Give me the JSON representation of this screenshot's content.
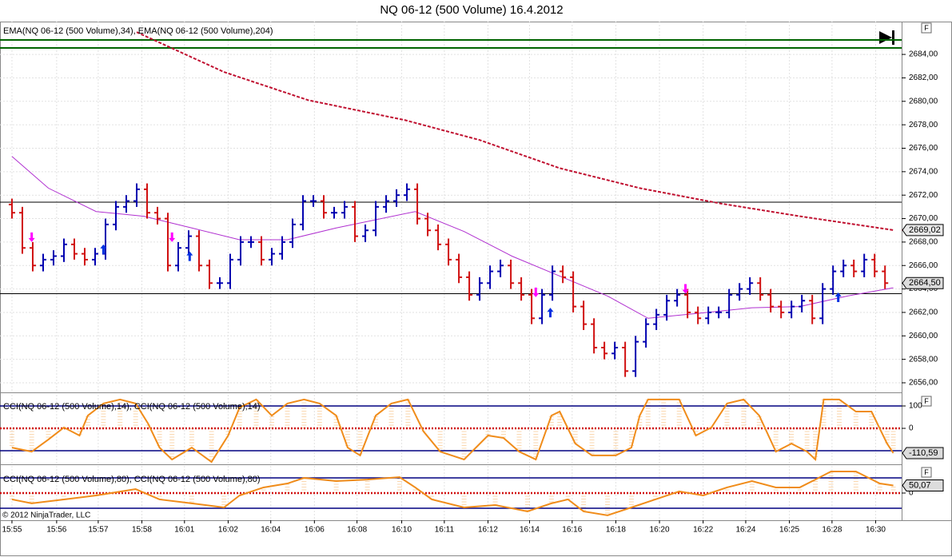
{
  "chart_data": [
    {
      "type": "ohlc",
      "title": "NQ 06-12 (500 Volume)  16.4.2012",
      "legend_text": "EMA(NQ 06-12 (500 Volume),34), EMA(NQ 06-12 (500 Volume),204)",
      "copyright": "© 2012 NinjaTrader, LLC",
      "axis_button": "F",
      "up_color": "#0000b0",
      "down_color": "#d01010",
      "grid": true,
      "xlim": [
        -1.15,
        85.6
      ],
      "xticks": [
        {
          "value": 0,
          "label": "15:55"
        },
        {
          "value": 4.3,
          "label": "15:56"
        },
        {
          "value": 8.3,
          "label": "15:57"
        },
        {
          "value": 12.5,
          "label": "15:58"
        },
        {
          "value": 16.6,
          "label": "16:01"
        },
        {
          "value": 20.8,
          "label": "16:02"
        },
        {
          "value": 24.9,
          "label": "16:04"
        },
        {
          "value": 29.1,
          "label": "16:06"
        },
        {
          "value": 33.2,
          "label": "16:08"
        },
        {
          "value": 37.5,
          "label": "16:10"
        },
        {
          "value": 41.6,
          "label": "16:11"
        },
        {
          "value": 45.8,
          "label": "16:12"
        },
        {
          "value": 49.8,
          "label": "16:14"
        },
        {
          "value": 53.9,
          "label": "16:16"
        },
        {
          "value": 58.1,
          "label": "16:18"
        },
        {
          "value": 62.3,
          "label": "16:20"
        },
        {
          "value": 66.5,
          "label": "16:22"
        },
        {
          "value": 70.6,
          "label": "16:24"
        },
        {
          "value": 74.8,
          "label": "16:25"
        },
        {
          "value": 78.9,
          "label": "16:28"
        },
        {
          "value": 83.1,
          "label": "16:30"
        }
      ],
      "ylim": [
        2655.25,
        2686.8
      ],
      "yticks": [
        {
          "value": 2656,
          "label": "2656,00"
        },
        {
          "value": 2658,
          "label": "2658,00"
        },
        {
          "value": 2660,
          "label": "2660,00"
        },
        {
          "value": 2662,
          "label": "2662,00"
        },
        {
          "value": 2664,
          "label": "2664,00"
        },
        {
          "value": 2666,
          "label": "2666,00"
        },
        {
          "value": 2668,
          "label": "2668,00"
        },
        {
          "value": 2670,
          "label": "2670,00"
        },
        {
          "value": 2672,
          "label": "2672,00"
        },
        {
          "value": 2674,
          "label": "2674,00"
        },
        {
          "value": 2676,
          "label": "2676,00"
        },
        {
          "value": 2678,
          "label": "2678,00"
        },
        {
          "value": 2680,
          "label": "2680,00"
        },
        {
          "value": 2682,
          "label": "2682,00"
        },
        {
          "value": 2684,
          "label": "2684,00"
        }
      ],
      "open": [
        2671.2,
        2670.5,
        2667.5,
        2666,
        2666.5,
        2666.8,
        2667.8,
        2667,
        2666.5,
        2667,
        2669.5,
        2671,
        2671.5,
        2672.5,
        2670.5,
        2670,
        2666,
        2667.5,
        2668.5,
        2666,
        2664.5,
        2664.5,
        2666.5,
        2668,
        2668,
        2666.5,
        2667,
        2668,
        2669.5,
        2671.5,
        2671.5,
        2670.5,
        2670.5,
        2671,
        2668.5,
        2669,
        2671,
        2671.5,
        2672,
        2672.5,
        2670,
        2669,
        2667.8,
        2666.5,
        2665,
        2663.5,
        2664.5,
        2665.5,
        2666,
        2664.5,
        2663.5,
        2661.5,
        2663.5,
        2665.5,
        2665,
        2662.5,
        2661,
        2659,
        2658.5,
        2659,
        2657,
        2659.5,
        2661,
        2661.8,
        2663,
        2663.5,
        2662,
        2661.5,
        2662,
        2662,
        2663.5,
        2664,
        2664.5,
        2663.5,
        2662.5,
        2662,
        2662.5,
        2663,
        2661.5,
        2664,
        2665.5,
        2666,
        2665.5,
        2666.5,
        2665.5
      ],
      "high": [
        2671.7,
        2671,
        2668,
        2667,
        2667.3,
        2668.3,
        2668.3,
        2667.5,
        2667.5,
        2670,
        2671.5,
        2672,
        2673,
        2673,
        2671,
        2670.5,
        2668,
        2669,
        2669,
        2666.5,
        2665,
        2667,
        2668.5,
        2668.5,
        2668.5,
        2667.5,
        2668.5,
        2670,
        2672,
        2672,
        2672,
        2671,
        2671.5,
        2671.5,
        2669.5,
        2671.5,
        2672,
        2672.5,
        2673,
        2673,
        2670.5,
        2669.5,
        2668.3,
        2667,
        2665.5,
        2665,
        2666,
        2666.5,
        2666.5,
        2665,
        2664,
        2664,
        2666,
        2666,
        2665.5,
        2663,
        2661.5,
        2659.5,
        2659.5,
        2659.5,
        2660,
        2661.5,
        2662.3,
        2663.5,
        2664,
        2664,
        2662.5,
        2662.5,
        2662.5,
        2664,
        2664.5,
        2665,
        2665,
        2664,
        2663,
        2663,
        2663.5,
        2663.5,
        2664.5,
        2666,
        2666.5,
        2666.5,
        2667,
        2667,
        2666
      ],
      "low": [
        2670,
        2667,
        2665.5,
        2665.5,
        2666,
        2666.3,
        2666.5,
        2666,
        2666,
        2666.5,
        2669,
        2670.5,
        2671,
        2670,
        2669.5,
        2665.5,
        2665.5,
        2667,
        2665.5,
        2664,
        2664,
        2664,
        2666,
        2667.5,
        2666,
        2666,
        2666.5,
        2667.5,
        2669,
        2671,
        2670,
        2670,
        2670,
        2668,
        2668,
        2668.5,
        2670.5,
        2671,
        2671.5,
        2669.5,
        2668.5,
        2667.3,
        2666,
        2664.5,
        2663,
        2663,
        2664,
        2665,
        2664,
        2663,
        2661,
        2661,
        2663,
        2664.5,
        2662,
        2660.5,
        2658.5,
        2658,
        2658,
        2656.5,
        2656.5,
        2659,
        2660.5,
        2661.3,
        2662.5,
        2661.5,
        2661,
        2661,
        2661.5,
        2661.5,
        2663,
        2663.5,
        2663,
        2662,
        2661.5,
        2661.5,
        2662,
        2661,
        2661,
        2663.5,
        2665,
        2665,
        2665,
        2665,
        2664
      ],
      "close": [
        2670.5,
        2667.5,
        2666,
        2666.5,
        2666.8,
        2667.8,
        2667,
        2666.5,
        2667,
        2669.5,
        2671,
        2671.5,
        2672.5,
        2670.5,
        2670,
        2666,
        2667.5,
        2668.5,
        2666,
        2664.5,
        2664.5,
        2666.5,
        2668,
        2668,
        2666.5,
        2667,
        2668,
        2669.5,
        2671.5,
        2671.5,
        2670.5,
        2670.5,
        2671,
        2668.5,
        2669,
        2671,
        2671.5,
        2672,
        2672.5,
        2670,
        2669,
        2667.8,
        2666.5,
        2665,
        2663.5,
        2664.5,
        2665.5,
        2666,
        2664.5,
        2663.5,
        2661.5,
        2663.5,
        2665.5,
        2665,
        2662.5,
        2661,
        2659,
        2658.5,
        2659,
        2657,
        2659.5,
        2661,
        2661.8,
        2663,
        2663.5,
        2662,
        2661.5,
        2662,
        2662,
        2663.5,
        2664,
        2664.5,
        2663.5,
        2662.5,
        2662,
        2662.5,
        2663,
        2661.5,
        2664,
        2665.5,
        2666,
        2665.5,
        2666.5,
        2665.5,
        2664.5
      ],
      "series": [
        {
          "color": "#b030d0",
          "dash": false,
          "x": [
            0,
            3.5,
            8.1,
            12.7,
            17.3,
            21.9,
            26.5,
            31.2,
            38.8,
            43.5,
            48.1,
            52.7,
            57.3,
            61.2,
            65.8,
            71.2,
            75.8,
            80.4,
            84.8
          ],
          "values": [
            2675.3,
            2672.6,
            2670.6,
            2670.2,
            2669.2,
            2668.2,
            2668.2,
            2669.2,
            2670.6,
            2668.9,
            2666.8,
            2665.1,
            2663.4,
            2661.5,
            2661.9,
            2662.4,
            2662.5,
            2663.4,
            2664.1
          ]
        },
        {
          "color": "#c01030",
          "dash": true,
          "x": [
            12.0,
            20.4,
            28.5,
            37.8,
            45.0,
            52.7,
            60.4,
            68.1,
            75.8,
            84.8
          ],
          "values": [
            2685.9,
            2682.5,
            2680.1,
            2678.4,
            2676.7,
            2674.3,
            2672.6,
            2671.3,
            2670.2,
            2669.02
          ]
        }
      ],
      "hlines": [
        {
          "color": "#006400",
          "values": [
            2685.23,
            2684.55
          ]
        },
        {
          "color": "#000000",
          "values": [
            2671.4,
            2663.6
          ]
        }
      ],
      "arrows": [
        {
          "color": "#ff00ff",
          "direction": "down",
          "x": [
            1.9,
            15.4,
            50.4,
            64.8
          ],
          "values": [
            2668.0,
            2668.0,
            2663.3,
            2663.6
          ]
        },
        {
          "color": "#0030e0",
          "direction": "up",
          "x": [
            8.8,
            17.1,
            51.8,
            79.5
          ],
          "values": [
            2667.8,
            2667.2,
            2662.4,
            2663.7
          ]
        }
      ],
      "price_labels": [
        {
          "value": 2669.02,
          "label": "2669,02",
          "color": "#c01030"
        },
        {
          "value": 2664.5,
          "label": "2664,50",
          "color": "#000000"
        }
      ]
    },
    {
      "type": "cci",
      "legend_text": "CCI(NQ 06-12 (500 Volume),14), CCI(NQ 06-12 (500 Volume),14)",
      "axis_button": "F",
      "ylim": [
        -157,
        150
      ],
      "yticks": [
        100,
        0
      ],
      "bands": [
        100,
        -100
      ],
      "zero": 0,
      "series": [
        {
          "color": "#f08c1a",
          "x": [
            0,
            1.9,
            3.5,
            5,
            6.5,
            7.3,
            8.8,
            10.4,
            11.9,
            13.1,
            14.2,
            15.4,
            17.3,
            19.2,
            20.8,
            21.9,
            23.5,
            25,
            26.5,
            28.1,
            29.6,
            31.2,
            32.3,
            33.5,
            35,
            36.5,
            38.1,
            39.6,
            41.2,
            43.5,
            45.8,
            47.3,
            48.8,
            50.4,
            51.9,
            52.7,
            54.2,
            55.8,
            58.1,
            59.6,
            60.4,
            61.2,
            62.7,
            64.2,
            65.8,
            67.3,
            68.8,
            70.4,
            71.9,
            73.5,
            75,
            76.5,
            77.3,
            78.1,
            79.6,
            81.2,
            82.7,
            84.2,
            84.8
          ],
          "values": [
            -86,
            -104,
            -50,
            4,
            -32,
            57,
            111,
            129,
            111,
            21,
            -86,
            -139,
            -86,
            -150,
            -32,
            93,
            129,
            57,
            111,
            129,
            111,
            57,
            -86,
            -121,
            57,
            111,
            129,
            -14,
            -104,
            -139,
            -32,
            -43,
            -104,
            -139,
            57,
            75,
            -68,
            -121,
            -121,
            -86,
            57,
            129,
            129,
            129,
            -32,
            4,
            111,
            129,
            57,
            -104,
            -68,
            -104,
            -139,
            129,
            129,
            75,
            75,
            -68,
            -110.59
          ],
          "last_label": "-110,59"
        }
      ]
    },
    {
      "type": "cci",
      "legend_text": "CCI(NQ 06-12 (500 Volume),80), CCI(NQ 06-12 (500 Volume),80)",
      "axis_button": "F",
      "ylim": [
        -174,
        179
      ],
      "yticks": [
        0
      ],
      "bands": [
        100,
        -100
      ],
      "zero": 0,
      "series": [
        {
          "color": "#f08c1a",
          "x": [
            0,
            1.9,
            5,
            8.1,
            11.9,
            14.2,
            17.3,
            20.4,
            21.9,
            24.2,
            26.5,
            28.1,
            31.2,
            34.2,
            37.3,
            38.8,
            40.4,
            43.5,
            46.5,
            49.6,
            51.9,
            53.5,
            55,
            57.3,
            59.6,
            61.9,
            64.2,
            66.5,
            68.8,
            71.2,
            73.5,
            75.8,
            77.3,
            78.8,
            81.2,
            83.5,
            84.8
          ],
          "values": [
            -42,
            -68,
            -42,
            -16,
            26,
            -42,
            -68,
            -95,
            -16,
            37,
            63,
            100,
            79,
            89,
            105,
            37,
            -42,
            -95,
            -79,
            -121,
            -68,
            -42,
            -121,
            -147,
            -95,
            -42,
            11,
            -16,
            37,
            79,
            37,
            37,
            89,
            142,
            142,
            63,
            50.07
          ],
          "last_label": "50,07"
        }
      ]
    }
  ]
}
